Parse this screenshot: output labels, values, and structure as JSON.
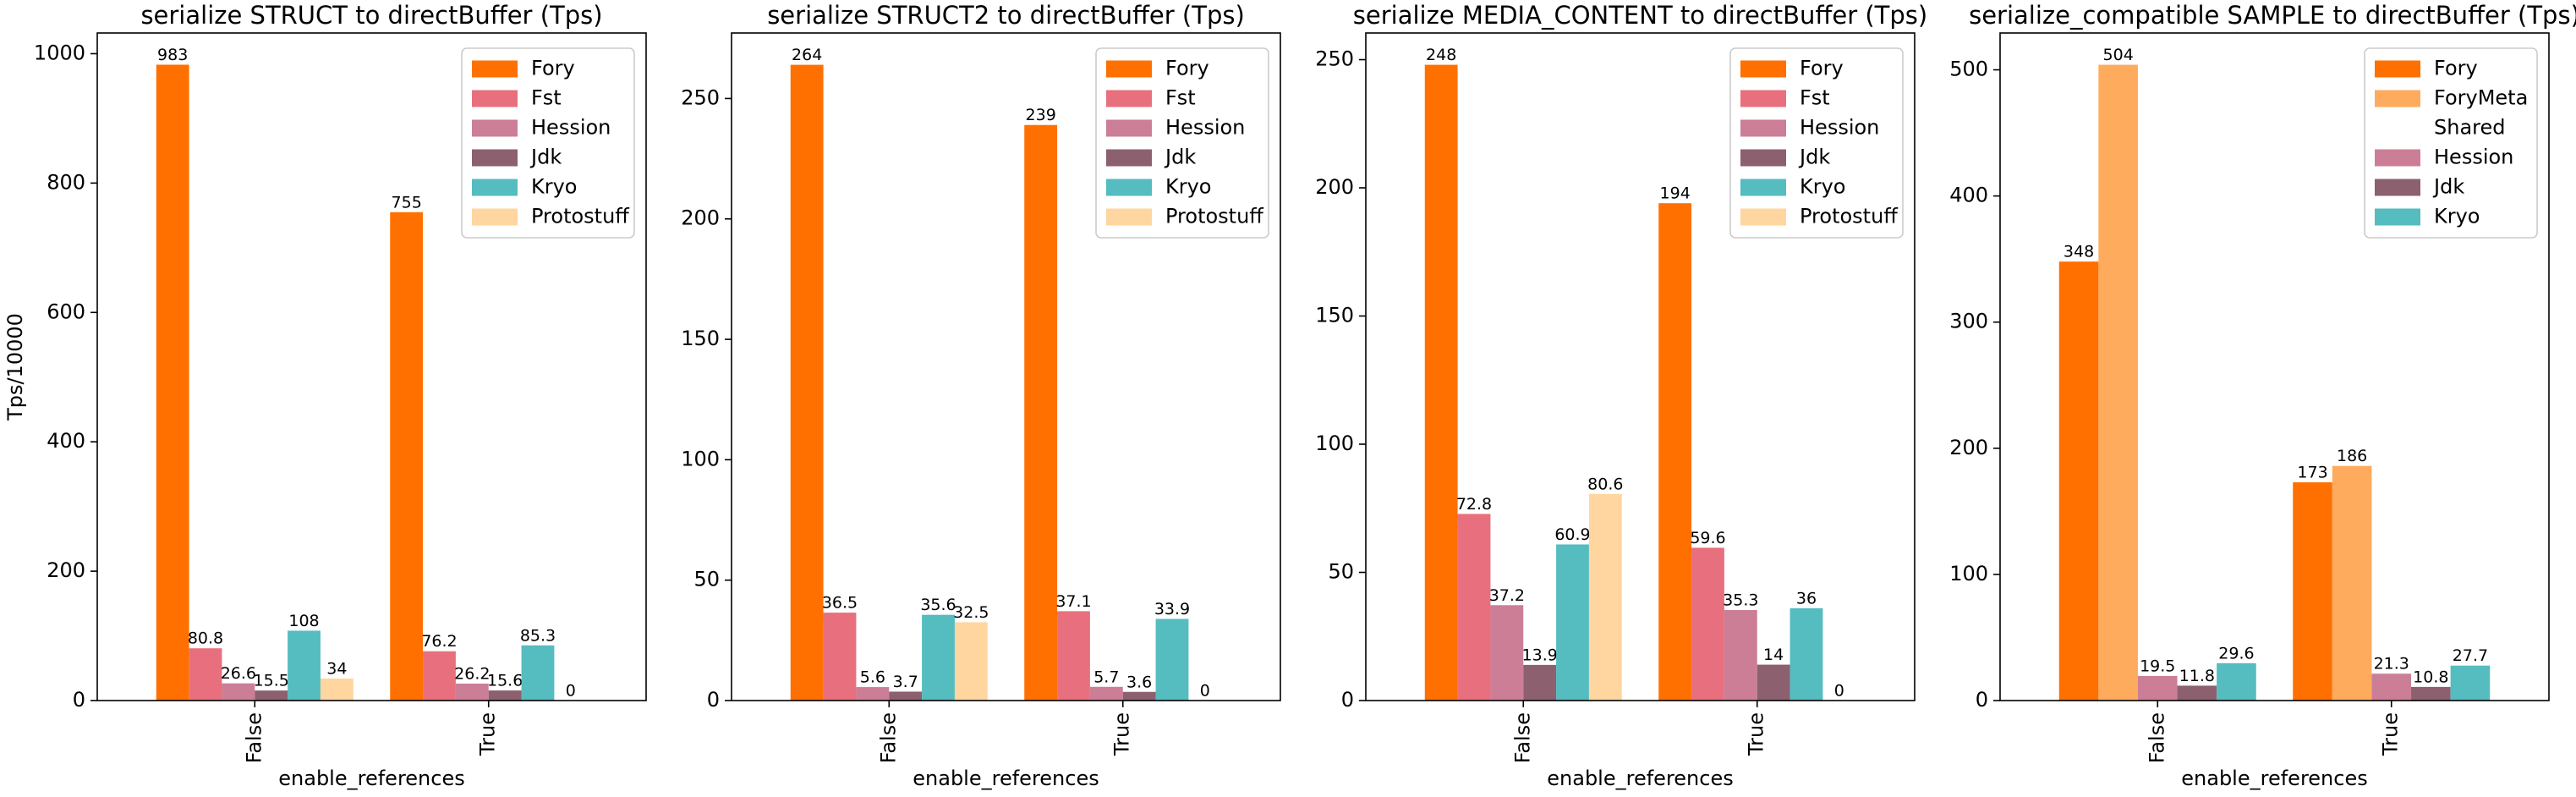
{
  "chart_data": [
    {
      "type": "bar",
      "title": "serialize STRUCT to directBuffer (Tps)",
      "xlabel": "enable_references",
      "ylabel": "Tps/10000",
      "categories": [
        "False",
        "True"
      ],
      "ylim": [
        0,
        1032
      ],
      "yticks": [
        0,
        200,
        400,
        600,
        800,
        1000
      ],
      "legend": "upper right",
      "series": [
        {
          "name": "Fory",
          "color": "#ff7000",
          "values": [
            983,
            755
          ]
        },
        {
          "name": "Fst",
          "color": "#e8707e",
          "values": [
            80.8,
            76.2
          ]
        },
        {
          "name": "Hession",
          "color": "#cc7e96",
          "values": [
            26.6,
            26.2
          ]
        },
        {
          "name": "Jdk",
          "color": "#8c606f",
          "values": [
            15.5,
            15.6
          ]
        },
        {
          "name": "Kryo",
          "color": "#55bcc0",
          "values": [
            108,
            85.3
          ]
        },
        {
          "name": "Protostuff",
          "color": "#ffd5a0",
          "values": [
            34,
            0
          ]
        }
      ]
    },
    {
      "type": "bar",
      "title": "serialize STRUCT2 to directBuffer (Tps)",
      "xlabel": "enable_references",
      "categories": [
        "False",
        "True"
      ],
      "ylim": [
        0,
        277.2
      ],
      "yticks": [
        0,
        50,
        100,
        150,
        200,
        250
      ],
      "legend": "upper right",
      "series": [
        {
          "name": "Fory",
          "color": "#ff7000",
          "values": [
            264,
            239
          ]
        },
        {
          "name": "Fst",
          "color": "#e8707e",
          "values": [
            36.5,
            37.1
          ]
        },
        {
          "name": "Hession",
          "color": "#cc7e96",
          "values": [
            5.6,
            5.7
          ]
        },
        {
          "name": "Jdk",
          "color": "#8c606f",
          "values": [
            3.7,
            3.6
          ]
        },
        {
          "name": "Kryo",
          "color": "#55bcc0",
          "values": [
            35.6,
            33.9
          ]
        },
        {
          "name": "Protostuff",
          "color": "#ffd5a0",
          "values": [
            32.5,
            0
          ]
        }
      ]
    },
    {
      "type": "bar",
      "title": "serialize MEDIA_CONTENT to directBuffer (Tps)",
      "xlabel": "enable_references",
      "categories": [
        "False",
        "True"
      ],
      "ylim": [
        0,
        260.4
      ],
      "yticks": [
        0,
        50,
        100,
        150,
        200,
        250
      ],
      "legend": "upper right",
      "series": [
        {
          "name": "Fory",
          "color": "#ff7000",
          "values": [
            248,
            194
          ]
        },
        {
          "name": "Fst",
          "color": "#e8707e",
          "values": [
            72.8,
            59.6
          ]
        },
        {
          "name": "Hession",
          "color": "#cc7e96",
          "values": [
            37.2,
            35.3
          ]
        },
        {
          "name": "Jdk",
          "color": "#8c606f",
          "values": [
            13.9,
            14
          ]
        },
        {
          "name": "Kryo",
          "color": "#55bcc0",
          "values": [
            60.9,
            36
          ]
        },
        {
          "name": "Protostuff",
          "color": "#ffd5a0",
          "values": [
            80.6,
            0
          ]
        }
      ]
    },
    {
      "type": "bar",
      "title": "serialize_compatible SAMPLE to directBuffer (Tps)",
      "xlabel": "enable_references",
      "categories": [
        "False",
        "True"
      ],
      "ylim": [
        0,
        529.2
      ],
      "yticks": [
        0,
        100,
        200,
        300,
        400,
        500
      ],
      "legend": "upper right",
      "series": [
        {
          "name": "Fory",
          "color": "#ff7000",
          "values": [
            348,
            173
          ]
        },
        {
          "name": "ForyMeta\nShared",
          "color": "#ffab5e",
          "values": [
            504,
            186
          ]
        },
        {
          "name": "Hession",
          "color": "#cc7e96",
          "values": [
            19.5,
            21.3
          ]
        },
        {
          "name": "Jdk",
          "color": "#8c606f",
          "values": [
            11.8,
            10.8
          ]
        },
        {
          "name": "Kryo",
          "color": "#55bcc0",
          "values": [
            29.6,
            27.7
          ]
        }
      ]
    }
  ]
}
